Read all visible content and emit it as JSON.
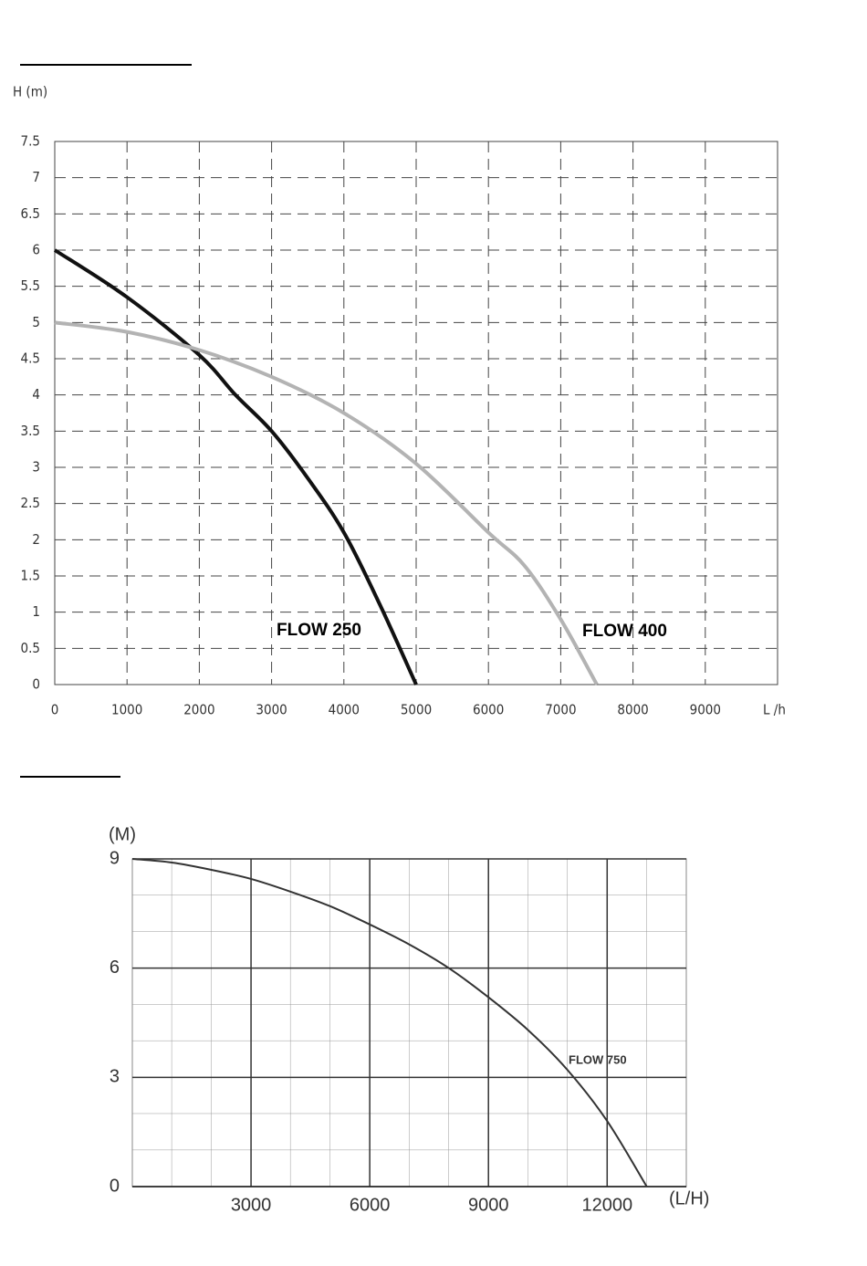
{
  "chart_data": [
    {
      "type": "line",
      "ylabel": "H (m)",
      "xlabel": "L /h",
      "xlim": [
        0,
        10000
      ],
      "ylim": [
        0,
        7.5
      ],
      "xticks": [
        0,
        1000,
        2000,
        3000,
        4000,
        5000,
        6000,
        7000,
        8000,
        9000
      ],
      "yticks": [
        0,
        0.5,
        1,
        1.5,
        2,
        2.5,
        3,
        3.5,
        4,
        4.5,
        5,
        5.5,
        6,
        6.5,
        7,
        7.5
      ],
      "grid": true,
      "grid_style": "dashed",
      "series": [
        {
          "name": "FLOW 250",
          "color": "#111111",
          "x": [
            0,
            1000,
            2000,
            2500,
            3000,
            3500,
            4000,
            4500,
            5000
          ],
          "values": [
            6,
            5.35,
            4.55,
            4.0,
            3.5,
            2.85,
            2.1,
            1.1,
            0
          ]
        },
        {
          "name": "FLOW 400",
          "color": "#b3b3b3",
          "x": [
            0,
            1000,
            2000,
            3000,
            4000,
            5000,
            6000,
            6500,
            7000,
            7500
          ],
          "values": [
            5,
            4.87,
            4.62,
            4.25,
            3.75,
            3.05,
            2.1,
            1.64,
            0.9,
            0
          ]
        }
      ]
    },
    {
      "type": "line",
      "ylabel": "(M)",
      "xlabel": "(L/H)",
      "xlim": [
        0,
        14000
      ],
      "ylim": [
        0,
        9
      ],
      "xticks": [
        3000,
        6000,
        9000,
        12000
      ],
      "yticks": [
        0,
        3,
        6,
        9
      ],
      "grid": true,
      "grid_style": "solid",
      "series": [
        {
          "name": "FLOW 750",
          "color": "#333333",
          "x": [
            0,
            1000,
            2000,
            3000,
            4000,
            5000,
            6000,
            7000,
            8000,
            9000,
            10000,
            11000,
            12000,
            13000
          ],
          "values": [
            9,
            8.9,
            8.7,
            8.45,
            8.1,
            7.7,
            7.2,
            6.65,
            6.0,
            5.2,
            4.3,
            3.2,
            1.8,
            0
          ]
        }
      ]
    }
  ]
}
